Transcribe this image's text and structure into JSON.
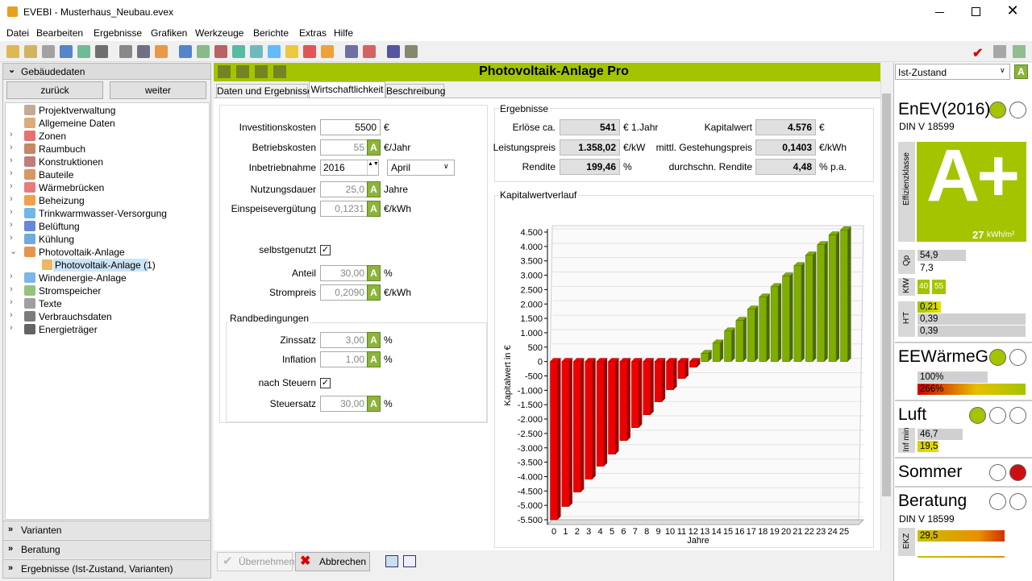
{
  "window": {
    "title": "EVEBI - Musterhaus_Neubau.evex"
  },
  "menu": [
    "Datei",
    "Bearbeiten",
    "Ergebnisse",
    "Grafiken",
    "Werkzeuge",
    "Berichte",
    "Extras",
    "Hilfe"
  ],
  "sidebar": {
    "header": "Gebäudedaten",
    "back": "zurück",
    "next": "weiter",
    "tree": [
      {
        "label": "Projektverwaltung"
      },
      {
        "label": "Allgemeine Daten"
      },
      {
        "label": "Zonen"
      },
      {
        "label": "Raumbuch"
      },
      {
        "label": "Konstruktionen"
      },
      {
        "label": "Bauteile"
      },
      {
        "label": "Wärmebrücken"
      },
      {
        "label": "Beheizung"
      },
      {
        "label": "Trinkwarmwasser-Versorgung"
      },
      {
        "label": "Belüftung"
      },
      {
        "label": "Kühlung"
      },
      {
        "label": "Photovoltaik-Anlage",
        "children": [
          "Photovoltaik-Anlage (1)"
        ]
      },
      {
        "label": "Windenergie-Anlage"
      },
      {
        "label": "Stromspeicher"
      },
      {
        "label": "Texte"
      },
      {
        "label": "Verbrauchsdaten"
      },
      {
        "label": "Energieträger"
      }
    ],
    "sections": [
      "Varianten",
      "Beratung",
      "Ergebnisse (Ist-Zustand, Varianten)"
    ]
  },
  "panel": {
    "title": "Photovoltaik-Anlage Pro",
    "tabs": [
      "Daten und Ergebnisse",
      "Wirtschaftlichkeit",
      "Beschreibung"
    ],
    "inputs": [
      {
        "label": "Investitionskosten",
        "value": "5500",
        "unit": "€"
      },
      {
        "label": "Betriebskosten",
        "value": "55",
        "unit": "€/Jahr"
      },
      {
        "label": "Inbetriebnahme",
        "value": "2016",
        "select": "April"
      },
      {
        "label": "Nutzungsdauer",
        "value": "25,0",
        "unit": "Jahre"
      },
      {
        "label": "Einspeisevergütung",
        "value": "0,1231",
        "unit": "€/kWh"
      }
    ],
    "self_use": {
      "label": "selbstgenutzt",
      "inputs": [
        {
          "label": "Anteil",
          "value": "30,00",
          "unit": "%"
        },
        {
          "label": "Strompreis",
          "value": "0,2090",
          "unit": "€/kWh"
        }
      ]
    },
    "conditions": {
      "title": "Randbedingungen",
      "inputs": [
        {
          "label": "Zinssatz",
          "value": "3,00",
          "unit": "%"
        },
        {
          "label": "Inflation",
          "value": "1,00",
          "unit": "%"
        }
      ],
      "after_tax": "nach Steuern",
      "tax": {
        "label": "Steuersatz",
        "value": "30,00",
        "unit": "%"
      }
    },
    "results": {
      "title": "Ergebnisse",
      "items": [
        {
          "label": "Erlöse ca.",
          "value": "541",
          "unit": "€ 1.Jahr"
        },
        {
          "label": "Leistungspreis",
          "value": "1.358,02",
          "unit": "€/kW"
        },
        {
          "label": "Rendite",
          "value": "199,46",
          "unit": "%"
        },
        {
          "label": "Kapitalwert",
          "value": "4.576",
          "unit": "€"
        },
        {
          "label": "mittl. Gestehungspreis",
          "value": "0,1403",
          "unit": "€/kWh"
        },
        {
          "label": "durchschn. Rendite",
          "value": "4,48",
          "unit": "% p.a."
        }
      ]
    },
    "buttons": [
      "Übernehmen",
      "Abbrechen"
    ]
  },
  "chart_data": {
    "type": "bar",
    "title": "Kapitalwertverlauf",
    "y_label": "Kapitalwert in €",
    "x_label": "Jahre",
    "categories": [
      "0",
      "1",
      "2",
      "3",
      "4",
      "5",
      "6",
      "7",
      "8",
      "9",
      "10",
      "11",
      "12",
      "13",
      "14",
      "15",
      "16",
      "17",
      "18",
      "19",
      "20",
      "21",
      "22",
      "23",
      "24",
      "25"
    ],
    "values": [
      -5500,
      -5040,
      -4540,
      -4090,
      -3640,
      -3220,
      -2750,
      -2300,
      -1850,
      -1400,
      -980,
      -590,
      -200,
      280,
      640,
      1060,
      1430,
      1820,
      2240,
      2600,
      2970,
      3330,
      3700,
      4060,
      4400,
      4576
    ],
    "color_negative": "#ee0000",
    "color_positive": "#7fae00",
    "ylim": [
      -5500,
      4500
    ],
    "yticks": [
      {
        "value": -5500,
        "label": "-5.500"
      },
      {
        "value": -5000,
        "label": "-5.000"
      },
      {
        "value": -4500,
        "label": "-4.500"
      },
      {
        "value": -4000,
        "label": "-4.000"
      },
      {
        "value": -3500,
        "label": "-3.500"
      },
      {
        "value": -3000,
        "label": "-3.000"
      },
      {
        "value": -2500,
        "label": "-2.500"
      },
      {
        "value": -2000,
        "label": "-2.000"
      },
      {
        "value": -1500,
        "label": "-1.500"
      },
      {
        "value": -1000,
        "label": "-1.000"
      },
      -500,
      0,
      500,
      {
        "value": 1000,
        "label": "1.000"
      },
      {
        "value": 1500,
        "label": "1.500"
      },
      {
        "value": 2000,
        "label": "2.000"
      },
      {
        "value": 2500,
        "label": "2.500"
      },
      {
        "value": 3000,
        "label": "3.000"
      },
      {
        "value": 3500,
        "label": "3.500"
      },
      {
        "value": 4000,
        "label": "4.000"
      },
      {
        "value": 4500,
        "label": "4.500"
      }
    ],
    "grid": true
  },
  "status": {
    "variant": "Ist-Zustand",
    "enev": {
      "title": "EnEV(2016)",
      "subtitle": "DIN V 18599",
      "class_label": "Effizienzklasse",
      "class": "A+",
      "value": "27",
      "unit": "kWh/m²",
      "qp": {
        "label": "Qp",
        "values": [
          "54,9",
          "7,3"
        ]
      },
      "kfw": {
        "label": "KfW",
        "values": [
          "40",
          "55"
        ]
      },
      "ht": {
        "label": "H'T",
        "values": [
          "0,21",
          "0,39",
          "0,39"
        ]
      }
    },
    "eewg": {
      "title": "EEWärmeG",
      "values": [
        "100%",
        "266%"
      ]
    },
    "luft": {
      "title": "Luft",
      "label": "Inf min",
      "values": [
        "46,7",
        "19,5"
      ]
    },
    "sommer": {
      "title": "Sommer"
    },
    "beratung": {
      "title": "Beratung",
      "subtitle": "DIN V 18599",
      "label": "EKZ",
      "value": "29,5"
    }
  }
}
